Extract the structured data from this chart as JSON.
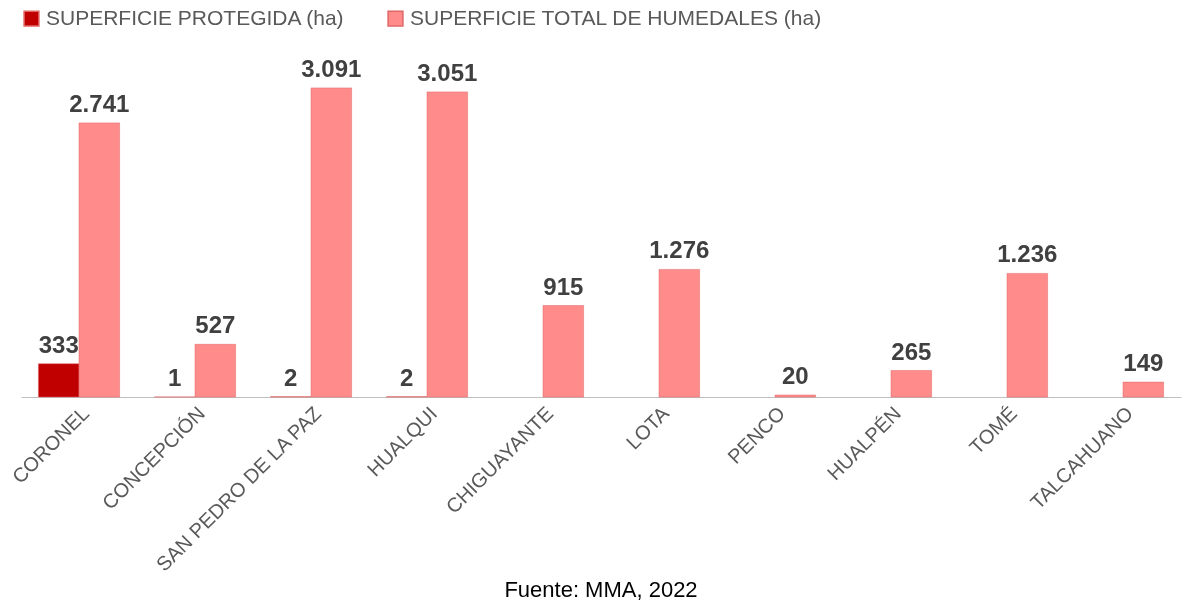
{
  "chart_data": {
    "type": "bar",
    "categories": [
      "CORONEL",
      "CONCEPCIÓN",
      "SAN PEDRO DE LA PAZ",
      "HUALQUI",
      "CHIGUAYANTE",
      "LOTA",
      "PENCO",
      "HUALPÉN",
      "TOMÉ",
      "TALCAHUANO"
    ],
    "series": [
      {
        "name": "SUPERFICIE PROTEGIDA (ha)",
        "color": "#c00000",
        "values": [
          333,
          1,
          2,
          2,
          null,
          null,
          null,
          null,
          null,
          null
        ],
        "value_labels": [
          "333",
          "1",
          "2",
          "2",
          null,
          null,
          null,
          null,
          null,
          null
        ]
      },
      {
        "name": "SUPERFICIE TOTAL DE HUMEDALES (ha)",
        "color": "#ff8b8b",
        "values": [
          2741,
          527,
          3091,
          3051,
          915,
          1276,
          20,
          265,
          1236,
          149
        ],
        "value_labels": [
          "2.741",
          "527",
          "3.091",
          "3.051",
          "915",
          "1.276",
          "20",
          "265",
          "1.236",
          "149"
        ]
      }
    ],
    "annotations": [
      "Fuente: MMA, 2022"
    ],
    "legend": "top",
    "grid": false
  }
}
